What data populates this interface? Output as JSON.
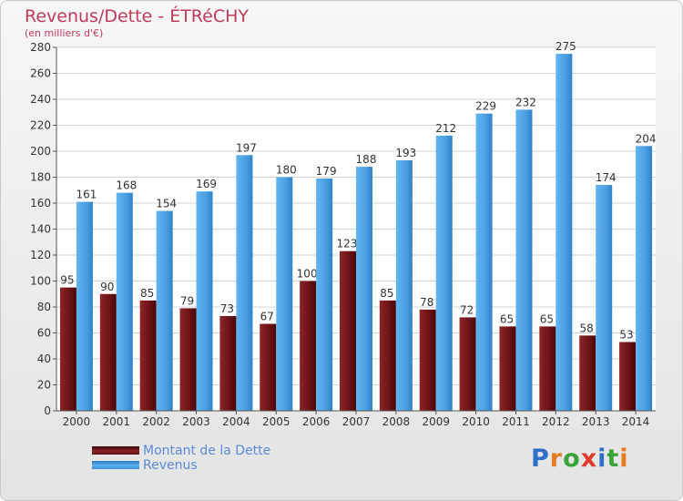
{
  "header": {
    "title": "Revenus/Dette - ÉTRéCHY",
    "subtitle": "(en milliers d'€)"
  },
  "chart_data": {
    "type": "bar",
    "categories": [
      "2000",
      "2001",
      "2002",
      "2003",
      "2004",
      "2005",
      "2006",
      "2007",
      "2008",
      "2009",
      "2010",
      "2011",
      "2012",
      "2013",
      "2014"
    ],
    "series": [
      {
        "name": "Montant de la Dette",
        "color": "#6e1518",
        "values": [
          95,
          90,
          85,
          79,
          73,
          67,
          100,
          123,
          85,
          78,
          72,
          65,
          65,
          58,
          53
        ]
      },
      {
        "name": "Revenus",
        "color": "#4a9fe0",
        "values": [
          161,
          168,
          154,
          169,
          197,
          180,
          179,
          188,
          193,
          212,
          229,
          232,
          275,
          174,
          204
        ]
      }
    ],
    "ylim": [
      0,
      280
    ],
    "yticks": [
      "0",
      "20",
      "40",
      "60",
      "80",
      "100",
      "120",
      "140",
      "160",
      "180",
      "200",
      "220",
      "240",
      "260",
      "280"
    ],
    "grid": true,
    "legend_position": "bottom-left"
  },
  "legend": {
    "items": [
      {
        "label": "Montant de la Dette",
        "color": "#6e1518"
      },
      {
        "label": "Revenus",
        "color": "#4a9fe0"
      }
    ]
  },
  "logo": {
    "text": "Proxiti",
    "letters": [
      "P",
      "r",
      "o",
      "x",
      "i",
      "t",
      "i"
    ],
    "colors": [
      "#2f6fc7",
      "#e87a1f",
      "#3aa43a",
      "#e23a2a",
      "#2f6fc7",
      "#3aa43a",
      "#e87a1f"
    ]
  }
}
